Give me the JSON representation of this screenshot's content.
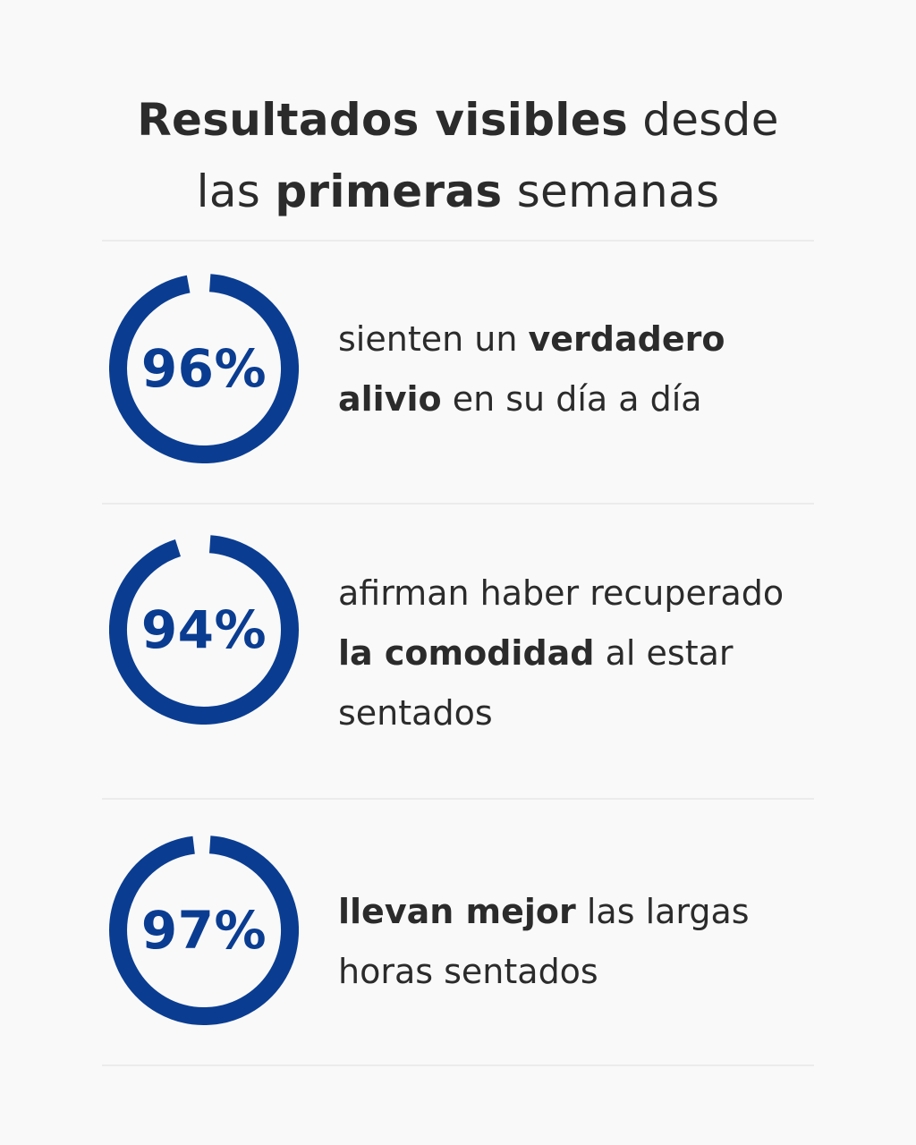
{
  "heading": {
    "line1_bold": "Resultados visibles",
    "line1_rest": " desde",
    "line2_start": "las ",
    "line2_bold": "primeras",
    "line2_rest": " semanas"
  },
  "colors": {
    "accent": "#0a3d91",
    "text": "#2b2b2b",
    "background": "#f9f9f9",
    "divider": "#ececec"
  },
  "chart_data": {
    "type": "pie",
    "charts": [
      {
        "label": "96%",
        "value": 96
      },
      {
        "label": "94%",
        "value": 94
      },
      {
        "label": "97%",
        "value": 97
      }
    ]
  },
  "stats": [
    {
      "pct": "96%",
      "lines": [
        [
          {
            "t": "sienten un "
          },
          {
            "t": "verdadero",
            "b": true
          }
        ],
        [
          {
            "t": "alivio",
            "b": true
          },
          {
            "t": " en su día a día"
          }
        ]
      ]
    },
    {
      "pct": "94%",
      "lines": [
        [
          {
            "t": "afirman haber recuperado"
          }
        ],
        [
          {
            "t": "la comodidad",
            "b": true
          },
          {
            "t": " al estar"
          }
        ],
        [
          {
            "t": "sentados"
          }
        ]
      ]
    },
    {
      "pct": "97%",
      "lines": [
        [
          {
            "t": "llevan mejor",
            "b": true
          },
          {
            "t": " las largas"
          }
        ],
        [
          {
            "t": "horas sentados"
          }
        ]
      ]
    }
  ]
}
